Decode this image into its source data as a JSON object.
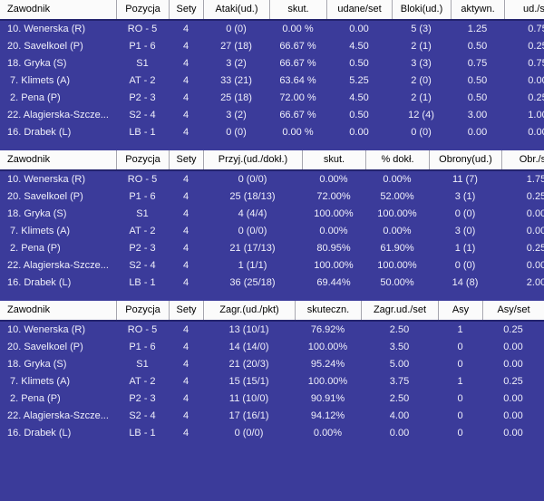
{
  "colors": {
    "row_background": "#3B3B9A",
    "header_background": "#FBFBFB",
    "header_text": "#000000",
    "header_bottom_border": "#23236E",
    "header_separator": "#A6A6AE",
    "row_text": "#EFEFFA"
  },
  "tables": [
    {
      "headers": [
        "Zawodnik",
        "Pozycja",
        "Sety",
        "Ataki(ud.)",
        "skut.",
        "udane/set",
        "Bloki(ud.)",
        "aktywn.",
        "ud./set"
      ],
      "rows": [
        [
          "10. Wenerska (R)",
          "RO - 5",
          "4",
          "0 (0)",
          "0.00 %",
          "0.00",
          "5 (3)",
          "1.25",
          "0.75"
        ],
        [
          "20. Savelkoel (P)",
          "P1 - 6",
          "4",
          "27 (18)",
          "66.67 %",
          "4.50",
          "2 (1)",
          "0.50",
          "0.25"
        ],
        [
          "18. Gryka (S)",
          "S1",
          "4",
          "3 (2)",
          "66.67 %",
          "0.50",
          "3 (3)",
          "0.75",
          "0.75"
        ],
        [
          " 7. Klimets (A)",
          "AT - 2",
          "4",
          "33 (21)",
          "63.64 %",
          "5.25",
          "2 (0)",
          "0.50",
          "0.00"
        ],
        [
          " 2. Pena (P)",
          "P2 - 3",
          "4",
          "25 (18)",
          "72.00 %",
          "4.50",
          "2 (1)",
          "0.50",
          "0.25"
        ],
        [
          "22. Alagierska-Szcze...",
          "S2 - 4",
          "4",
          "3 (2)",
          "66.67 %",
          "0.50",
          "12 (4)",
          "3.00",
          "1.00"
        ],
        [
          "16. Drabek (L)",
          "LB - 1",
          "4",
          "0 (0)",
          "0.00 %",
          "0.00",
          "0 (0)",
          "0.00",
          "0.00"
        ]
      ]
    },
    {
      "headers": [
        "Zawodnik",
        "Pozycja",
        "Sety",
        "Przyj.(ud./dokł.)",
        "skut.",
        "% dokł.",
        "Obrony(ud.)",
        "Obr./set"
      ],
      "rows": [
        [
          "10. Wenerska (R)",
          "RO - 5",
          "4",
          "0 (0/0)",
          "0.00%",
          "0.00%",
          "11 (7)",
          "1.75"
        ],
        [
          "20. Savelkoel (P)",
          "P1 - 6",
          "4",
          "25 (18/13)",
          "72.00%",
          "52.00%",
          "3 (1)",
          "0.25"
        ],
        [
          "18. Gryka (S)",
          "S1",
          "4",
          "4 (4/4)",
          "100.00%",
          "100.00%",
          "0 (0)",
          "0.00"
        ],
        [
          " 7. Klimets (A)",
          "AT - 2",
          "4",
          "0 (0/0)",
          "0.00%",
          "0.00%",
          "3 (0)",
          "0.00"
        ],
        [
          " 2. Pena (P)",
          "P2 - 3",
          "4",
          "21 (17/13)",
          "80.95%",
          "61.90%",
          "1 (1)",
          "0.25"
        ],
        [
          "22. Alagierska-Szcze...",
          "S2 - 4",
          "4",
          "1 (1/1)",
          "100.00%",
          "100.00%",
          "0 (0)",
          "0.00"
        ],
        [
          "16. Drabek (L)",
          "LB - 1",
          "4",
          "36 (25/18)",
          "69.44%",
          "50.00%",
          "14 (8)",
          "2.00"
        ]
      ]
    },
    {
      "headers": [
        "Zawodnik",
        "Pozycja",
        "Sety",
        "Zagr.(ud./pkt)",
        "skuteczn.",
        "Zagr.ud./set",
        "Asy",
        "Asy/set"
      ],
      "rows": [
        [
          "10. Wenerska (R)",
          "RO - 5",
          "4",
          "13 (10/1)",
          "76.92%",
          "2.50",
          "1",
          "0.25"
        ],
        [
          "20. Savelkoel (P)",
          "P1 - 6",
          "4",
          "14 (14/0)",
          "100.00%",
          "3.50",
          "0",
          "0.00"
        ],
        [
          "18. Gryka (S)",
          "S1",
          "4",
          "21 (20/3)",
          "95.24%",
          "5.00",
          "0",
          "0.00"
        ],
        [
          " 7. Klimets (A)",
          "AT - 2",
          "4",
          "15 (15/1)",
          "100.00%",
          "3.75",
          "1",
          "0.25"
        ],
        [
          " 2. Pena (P)",
          "P2 - 3",
          "4",
          "11 (10/0)",
          "90.91%",
          "2.50",
          "0",
          "0.00"
        ],
        [
          "22. Alagierska-Szcze...",
          "S2 - 4",
          "4",
          "17 (16/1)",
          "94.12%",
          "4.00",
          "0",
          "0.00"
        ],
        [
          "16. Drabek (L)",
          "LB - 1",
          "4",
          "0 (0/0)",
          "0.00%",
          "0.00",
          "0",
          "0.00"
        ]
      ]
    }
  ]
}
